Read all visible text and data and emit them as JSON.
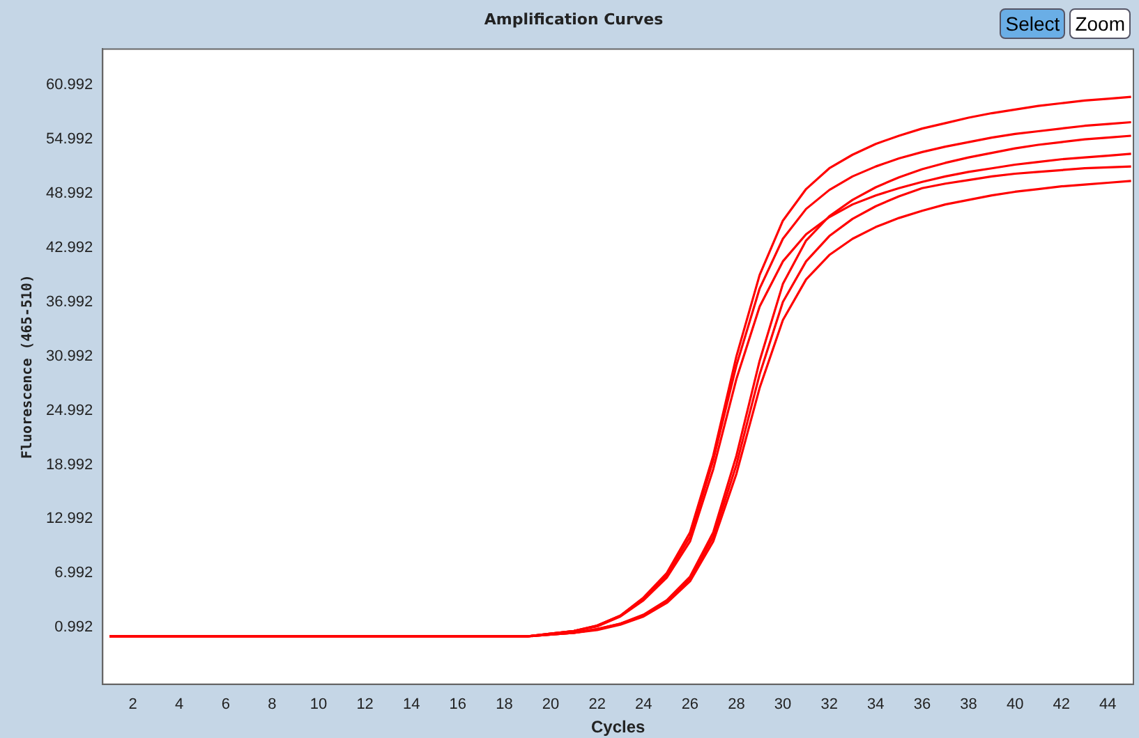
{
  "chart_data": {
    "type": "line",
    "title": "Amplification Curves",
    "xlabel": "Cycles",
    "ylabel": "Fluorescence (465-510)",
    "annotations": [
      "Select",
      "Zoom"
    ],
    "xlim": [
      0.7,
      45.1
    ],
    "xticks": [
      2,
      4,
      6,
      8,
      10,
      12,
      14,
      16,
      18,
      20,
      22,
      24,
      26,
      28,
      30,
      32,
      34,
      36,
      38,
      40,
      42,
      44
    ],
    "ylim": [
      -5.3,
      65
    ],
    "yticks": [
      0.992,
      6.992,
      12.992,
      18.992,
      24.992,
      30.992,
      36.992,
      42.992,
      48.992,
      54.992,
      60.992
    ],
    "x": [
      1,
      2,
      3,
      4,
      5,
      6,
      7,
      8,
      9,
      10,
      11,
      12,
      13,
      14,
      15,
      16,
      17,
      18,
      19,
      20,
      21,
      22,
      23,
      24,
      25,
      26,
      27,
      28,
      29,
      30,
      31,
      32,
      33,
      34,
      35,
      36,
      37,
      38,
      39,
      40,
      41,
      42,
      43,
      44,
      45
    ],
    "series": [
      {
        "color": "#ff0000",
        "values": [
          0,
          0,
          0,
          0,
          0,
          0,
          0,
          0,
          0,
          0,
          0,
          0,
          0,
          0,
          0,
          0,
          0,
          0,
          0,
          0.3,
          0.6,
          1.2,
          2.3,
          4.3,
          7,
          11.5,
          20,
          31,
          40,
          46,
          49.5,
          51.8,
          53.3,
          54.5,
          55.4,
          56.2,
          56.8,
          57.4,
          57.9,
          58.3,
          58.7,
          59,
          59.3,
          59.5,
          59.7
        ]
      },
      {
        "color": "#ff0000",
        "values": [
          0,
          0,
          0,
          0,
          0,
          0,
          0,
          0,
          0,
          0,
          0,
          0,
          0,
          0,
          0,
          0,
          0,
          0,
          0,
          0.3,
          0.6,
          1.2,
          2.3,
          4.2,
          6.8,
          11,
          19.5,
          30,
          38.5,
          44,
          47.3,
          49.4,
          50.9,
          52,
          52.9,
          53.6,
          54.2,
          54.7,
          55.2,
          55.6,
          55.9,
          56.2,
          56.5,
          56.7,
          56.9
        ]
      },
      {
        "color": "#ff0000",
        "values": [
          0,
          0,
          0,
          0,
          0,
          0,
          0,
          0,
          0,
          0,
          0,
          0,
          0,
          0,
          0,
          0,
          0,
          0,
          0,
          0.3,
          0.6,
          1.1,
          2.2,
          4,
          6.5,
          10.5,
          18.5,
          28.5,
          36.5,
          41.5,
          44.5,
          46.4,
          47.8,
          48.8,
          49.6,
          50.3,
          50.9,
          51.4,
          51.8,
          52.2,
          52.5,
          52.8,
          53,
          53.2,
          53.4
        ]
      },
      {
        "color": "#ff0000",
        "values": [
          0,
          0,
          0,
          0,
          0,
          0,
          0,
          0,
          0,
          0,
          0,
          0,
          0,
          0,
          0,
          0,
          0,
          0,
          0,
          0.2,
          0.4,
          0.8,
          1.4,
          2.4,
          4,
          6.6,
          11.5,
          20,
          30.5,
          39,
          43.8,
          46.5,
          48.3,
          49.7,
          50.8,
          51.7,
          52.4,
          53,
          53.5,
          54,
          54.4,
          54.7,
          55,
          55.2,
          55.4
        ]
      },
      {
        "color": "#ff0000",
        "values": [
          0,
          0,
          0,
          0,
          0,
          0,
          0,
          0,
          0,
          0,
          0,
          0,
          0,
          0,
          0,
          0,
          0,
          0,
          0,
          0.2,
          0.4,
          0.8,
          1.4,
          2.3,
          3.9,
          6.4,
          11,
          19,
          29,
          37,
          41.5,
          44.3,
          46.2,
          47.6,
          48.7,
          49.6,
          50.1,
          50.5,
          50.9,
          51.2,
          51.4,
          51.6,
          51.8,
          51.9,
          52
        ]
      },
      {
        "color": "#ff0000",
        "values": [
          0,
          0,
          0,
          0,
          0,
          0,
          0,
          0,
          0,
          0,
          0,
          0,
          0,
          0,
          0,
          0,
          0,
          0,
          0,
          0.2,
          0.4,
          0.7,
          1.3,
          2.2,
          3.7,
          6.1,
          10.5,
          18,
          27.5,
          35,
          39.5,
          42.2,
          44,
          45.3,
          46.3,
          47.1,
          47.8,
          48.3,
          48.8,
          49.2,
          49.5,
          49.8,
          50,
          50.2,
          50.4
        ]
      }
    ]
  }
}
